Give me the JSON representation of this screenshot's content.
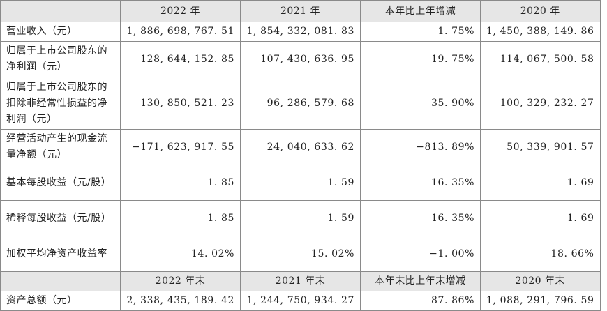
{
  "header": {
    "label": "",
    "cols": [
      "2022 年",
      "2021 年",
      "本年比上年增减",
      "2020 年"
    ]
  },
  "rows": [
    {
      "label": "营业收入（元）",
      "values": [
        "1, 886, 698, 767. 51",
        "1, 854, 332, 081. 83",
        "1. 75%",
        "1, 450, 388, 149. 86"
      ]
    },
    {
      "label": "归属于上市公司股东的净利润（元）",
      "values": [
        "128, 644, 152. 85",
        "107, 430, 636. 95",
        "19. 75%",
        "114, 067, 500. 58"
      ]
    },
    {
      "label": "归属于上市公司股东的扣除非经常性损益的净利润（元）",
      "values": [
        "130, 850, 521. 23",
        "96, 286, 579. 68",
        "35. 90%",
        "100, 329, 232. 27"
      ]
    },
    {
      "label": "经营活动产生的现金流量净额（元）",
      "values": [
        "−171, 623, 917. 55",
        "24, 040, 633. 62",
        "−813. 89%",
        "50, 339, 901. 57"
      ]
    },
    {
      "label": "基本每股收益（元/股）",
      "values": [
        "1. 85",
        "1. 59",
        "16. 35%",
        "1. 69"
      ]
    },
    {
      "label": "稀释每股收益（元/股）",
      "values": [
        "1. 85",
        "1. 59",
        "16. 35%",
        "1. 69"
      ]
    },
    {
      "label": "加权平均净资产收益率",
      "values": [
        "14. 02%",
        "15. 02%",
        "−1. 00%",
        "18. 66%"
      ]
    }
  ],
  "header2": {
    "label": "",
    "cols": [
      "2022 年末",
      "2021 年末",
      "本年末比上年末增减",
      "2020 年末"
    ]
  },
  "rows2": [
    {
      "label": "资产总额（元）",
      "values": [
        "2, 338, 435, 189. 42",
        "1, 244, 750, 934. 27",
        "87. 86%",
        "1, 088, 291, 796. 59"
      ]
    }
  ]
}
